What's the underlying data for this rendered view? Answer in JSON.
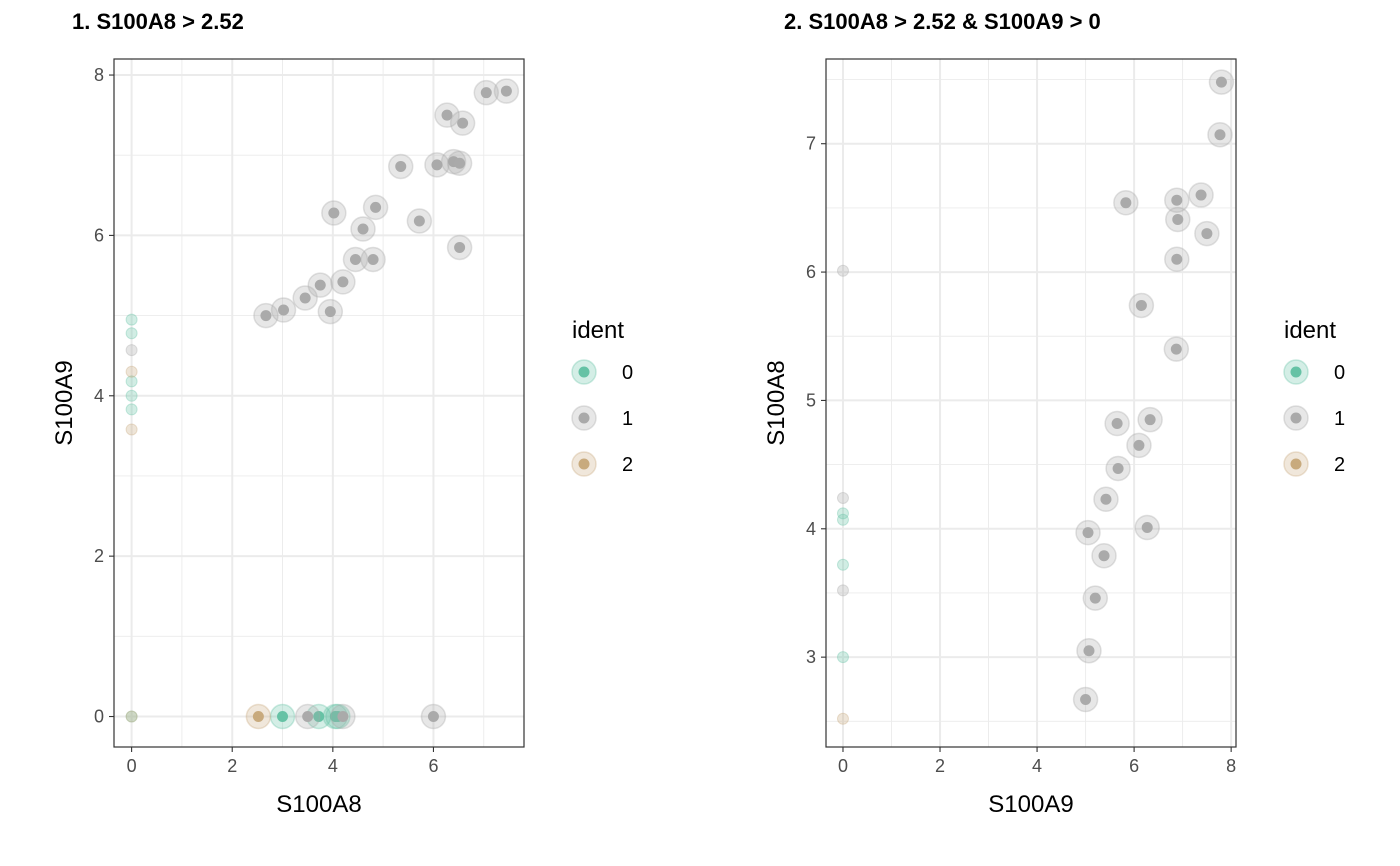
{
  "chart_data": [
    {
      "type": "scatter",
      "title": "1. S100A8 > 2.52",
      "xlabel": "S100A8",
      "ylabel": "S100A9",
      "xlim": [
        -0.35,
        7.8
      ],
      "ylim": [
        -0.38,
        8.2
      ],
      "xticks": [
        "0",
        "2",
        "4",
        "6"
      ],
      "yticks": [
        "0",
        "2",
        "4",
        "6",
        "8"
      ],
      "grid": true,
      "legend": {
        "title": "ident",
        "position": "right",
        "items": [
          "0",
          "1",
          "2"
        ]
      },
      "colors": {
        "0": "#66c2a5",
        "1": "#aaaaaa",
        "2": "#c8aa7d"
      },
      "series": [
        {
          "name": "0",
          "points": [
            [
              0,
              0
            ],
            [
              0,
              4.95
            ],
            [
              0,
              4.78
            ],
            [
              0,
              4.18
            ],
            [
              0,
              4.0
            ],
            [
              0,
              3.83
            ],
            [
              3.0,
              0
            ],
            [
              3.72,
              0
            ],
            [
              4.05,
              0
            ],
            [
              4.1,
              0
            ]
          ]
        },
        {
          "name": "1",
          "points": [
            [
              0,
              4.57
            ],
            [
              2.67,
              5.0
            ],
            [
              3.02,
              5.07
            ],
            [
              3.45,
              5.22
            ],
            [
              3.75,
              5.38
            ],
            [
              3.95,
              5.05
            ],
            [
              4.02,
              6.28
            ],
            [
              4.2,
              5.42
            ],
            [
              4.45,
              5.7
            ],
            [
              4.6,
              6.08
            ],
            [
              4.8,
              5.7
            ],
            [
              4.85,
              6.35
            ],
            [
              5.35,
              6.86
            ],
            [
              5.72,
              6.18
            ],
            [
              6.07,
              6.88
            ],
            [
              6.27,
              7.5
            ],
            [
              6.4,
              6.92
            ],
            [
              6.52,
              6.9
            ],
            [
              6.52,
              5.85
            ],
            [
              6.58,
              7.4
            ],
            [
              7.05,
              7.78
            ],
            [
              7.45,
              7.8
            ],
            [
              3.5,
              0
            ],
            [
              4.2,
              0
            ],
            [
              6.0,
              0
            ]
          ]
        },
        {
          "name": "2",
          "points": [
            [
              0,
              4.3
            ],
            [
              0,
              3.58
            ],
            [
              2.52,
              0
            ],
            [
              0,
              0
            ]
          ]
        }
      ]
    },
    {
      "type": "scatter",
      "title": "2. S100A8 > 2.52 & S100A9 > 0",
      "xlabel": "S100A9",
      "ylabel": "S100A8",
      "xlim": [
        -0.35,
        8.1
      ],
      "ylim": [
        2.3,
        7.66
      ],
      "xticks": [
        "0",
        "2",
        "4",
        "6",
        "8"
      ],
      "yticks": [
        "3",
        "4",
        "5",
        "6",
        "7"
      ],
      "grid": true,
      "legend": {
        "title": "ident",
        "position": "right",
        "items": [
          "0",
          "1",
          "2"
        ]
      },
      "colors": {
        "0": "#66c2a5",
        "1": "#aaaaaa",
        "2": "#c8aa7d"
      },
      "series": [
        {
          "name": "0",
          "points": [
            [
              0,
              4.12
            ],
            [
              0,
              4.07
            ],
            [
              0,
              3.72
            ],
            [
              0,
              3.0
            ]
          ]
        },
        {
          "name": "1",
          "points": [
            [
              0,
              6.01
            ],
            [
              0,
              4.24
            ],
            [
              0,
              3.52
            ],
            [
              5.0,
              2.67
            ],
            [
              5.07,
              3.05
            ],
            [
              5.2,
              3.46
            ],
            [
              5.38,
              3.79
            ],
            [
              5.05,
              3.97
            ],
            [
              5.42,
              4.23
            ],
            [
              5.67,
              4.47
            ],
            [
              5.65,
              4.82
            ],
            [
              6.1,
              4.65
            ],
            [
              6.33,
              4.85
            ],
            [
              6.27,
              4.01
            ],
            [
              6.87,
              5.4
            ],
            [
              6.15,
              5.74
            ],
            [
              5.83,
              6.54
            ],
            [
              6.88,
              6.1
            ],
            [
              6.9,
              6.41
            ],
            [
              6.88,
              6.56
            ],
            [
              7.38,
              6.6
            ],
            [
              7.5,
              6.3
            ],
            [
              7.77,
              7.07
            ],
            [
              7.8,
              7.48
            ]
          ]
        },
        {
          "name": "2",
          "points": [
            [
              0,
              2.52
            ]
          ]
        }
      ]
    }
  ]
}
